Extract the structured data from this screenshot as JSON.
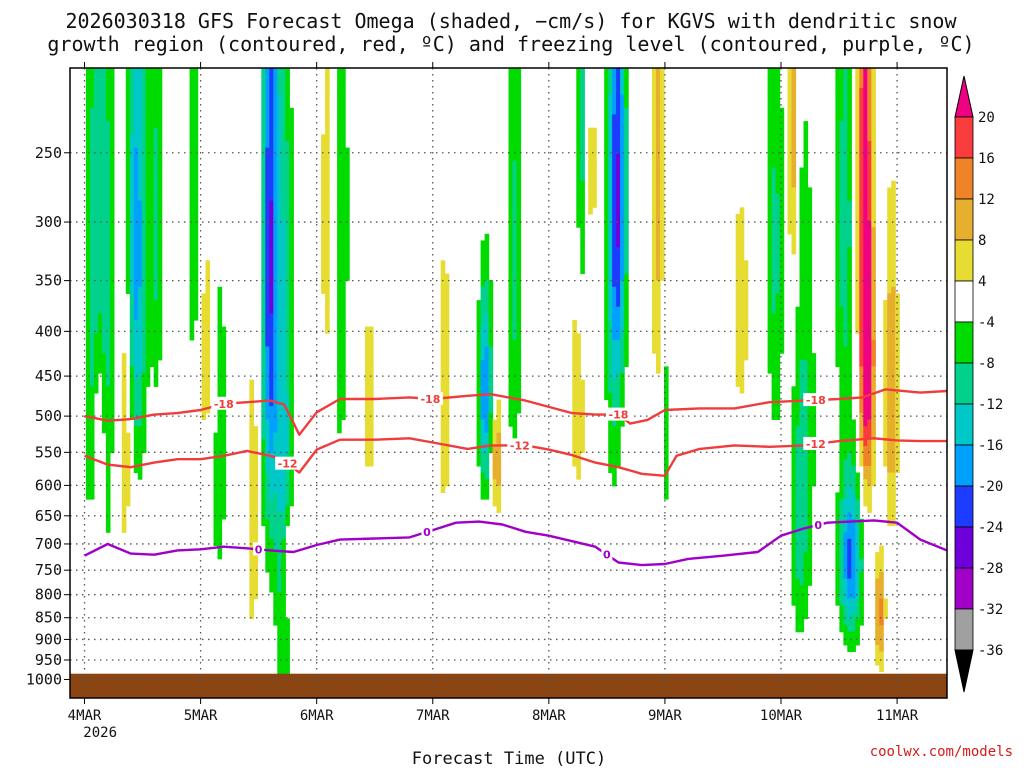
{
  "chart_data": {
    "type": "heatmap",
    "title": [
      "2026030318 GFS Forecast Omega (shaded, −cm/s) for KGVS with dendritic snow",
      "growth region (contoured, red, ºC) and freezing level (contoured, purple, ºC)"
    ],
    "xlabel": "Forecast Time (UTC)",
    "ylabel": "",
    "credit": "coolwx.com/models",
    "x_start_label": "2026",
    "xlim": [
      -0.125,
      7.43
    ],
    "ylim": [
      1050,
      200
    ],
    "x_ticks": [
      {
        "x": 0,
        "label": "4MAR"
      },
      {
        "x": 1,
        "label": "5MAR"
      },
      {
        "x": 2,
        "label": "6MAR"
      },
      {
        "x": 3,
        "label": "7MAR"
      },
      {
        "x": 4,
        "label": "8MAR"
      },
      {
        "x": 5,
        "label": "9MAR"
      },
      {
        "x": 6,
        "label": "10MAR"
      },
      {
        "x": 7,
        "label": "11MAR"
      }
    ],
    "y_ticks": [
      250,
      300,
      350,
      400,
      450,
      500,
      550,
      600,
      650,
      700,
      750,
      800,
      850,
      900,
      950,
      1000
    ],
    "colorbar": {
      "levels": [
        -36,
        -32,
        -28,
        -24,
        -20,
        -16,
        -12,
        -8,
        -4,
        4,
        8,
        12,
        16,
        20
      ],
      "label_levels": [
        "-36",
        "-32",
        "-28",
        "-24",
        "-20",
        "-16",
        "-12",
        "-8",
        "-4",
        "4",
        "8",
        "12",
        "16",
        "20"
      ],
      "colors": [
        "#000000",
        "#a0a0a0",
        "#a000c8",
        "#6e00dc",
        "#1e3cff",
        "#00a0ff",
        "#00c8c8",
        "#00d28c",
        "#00dc00",
        "#ffffff",
        "#e6dc32",
        "#e6af2d",
        "#f08228",
        "#fa3c3c",
        "#f00082"
      ]
    },
    "ground_level_hpa": 985,
    "omega_features": [
      {
        "x": 0.08,
        "p": 420,
        "hw": 0.05,
        "hp": 220,
        "v": -12
      },
      {
        "x": 0.18,
        "p": 380,
        "hw": 0.05,
        "hp": 250,
        "v": -10
      },
      {
        "x": 0.45,
        "p": 320,
        "hw": 0.06,
        "hp": 160,
        "v": -18
      },
      {
        "x": 0.62,
        "p": 300,
        "hw": 0.04,
        "hp": 120,
        "v": -9
      },
      {
        "x": 0.95,
        "p": 300,
        "hw": 0.05,
        "hp": 130,
        "v": -7
      },
      {
        "x": 1.6,
        "p": 330,
        "hw": 0.05,
        "hp": 230,
        "v": -24
      },
      {
        "x": 1.72,
        "p": 560,
        "hw": 0.05,
        "hp": 330,
        "v": -14
      },
      {
        "x": 1.15,
        "p": 520,
        "hw": 0.07,
        "hp": 230,
        "v": -6
      },
      {
        "x": 2.2,
        "p": 300,
        "hw": 0.05,
        "hp": 180,
        "v": -9
      },
      {
        "x": 3.45,
        "p": 470,
        "hw": 0.04,
        "hp": 90,
        "v": -20
      },
      {
        "x": 3.7,
        "p": 330,
        "hw": 0.05,
        "hp": 160,
        "v": -9
      },
      {
        "x": 4.3,
        "p": 260,
        "hw": 0.05,
        "hp": 100,
        "v": -14
      },
      {
        "x": 4.6,
        "p": 280,
        "hw": 0.05,
        "hp": 120,
        "v": -20
      },
      {
        "x": 4.55,
        "p": 350,
        "hw": 0.05,
        "hp": 200,
        "v": -8
      },
      {
        "x": 5.0,
        "p": 470,
        "hw": 0.03,
        "hp": 160,
        "v": -7
      },
      {
        "x": 5.95,
        "p": 320,
        "hw": 0.05,
        "hp": 150,
        "v": -9
      },
      {
        "x": 6.2,
        "p": 500,
        "hw": 0.07,
        "hp": 230,
        "v": -8
      },
      {
        "x": 6.55,
        "p": 300,
        "hw": 0.06,
        "hp": 160,
        "v": -10
      },
      {
        "x": 6.6,
        "p": 730,
        "hw": 0.07,
        "hp": 110,
        "v": -21
      },
      {
        "x": 6.15,
        "p": 700,
        "hw": 0.05,
        "hp": 140,
        "v": -6
      },
      {
        "x": 0.35,
        "p": 520,
        "hw": 0.04,
        "hp": 130,
        "v": 9
      },
      {
        "x": 0.12,
        "p": 540,
        "hw": 0.04,
        "hp": 120,
        "v": 13
      },
      {
        "x": 1.05,
        "p": 420,
        "hw": 0.05,
        "hp": 110,
        "v": 9
      },
      {
        "x": 1.45,
        "p": 650,
        "hw": 0.03,
        "hp": 180,
        "v": 8
      },
      {
        "x": 1.75,
        "p": 740,
        "hw": 0.03,
        "hp": 70,
        "v": 14
      },
      {
        "x": 2.1,
        "p": 300,
        "hw": 0.05,
        "hp": 120,
        "v": 7
      },
      {
        "x": 2.45,
        "p": 480,
        "hw": 0.04,
        "hp": 110,
        "v": 6
      },
      {
        "x": 3.1,
        "p": 470,
        "hw": 0.05,
        "hp": 160,
        "v": 6
      },
      {
        "x": 3.55,
        "p": 560,
        "hw": 0.03,
        "hp": 60,
        "v": 12
      },
      {
        "x": 4.25,
        "p": 450,
        "hw": 0.05,
        "hp": 120,
        "v": 8
      },
      {
        "x": 4.35,
        "p": 260,
        "hw": 0.04,
        "hp": 70,
        "v": 12
      },
      {
        "x": 4.95,
        "p": 280,
        "hw": 0.05,
        "hp": 140,
        "v": 10
      },
      {
        "x": 5.65,
        "p": 380,
        "hw": 0.05,
        "hp": 90,
        "v": 7
      },
      {
        "x": 6.1,
        "p": 230,
        "hw": 0.03,
        "hp": 90,
        "v": 12
      },
      {
        "x": 6.72,
        "p": 260,
        "hw": 0.04,
        "hp": 190,
        "v": 21
      },
      {
        "x": 6.75,
        "p": 440,
        "hw": 0.04,
        "hp": 110,
        "v": 18
      },
      {
        "x": 6.95,
        "p": 470,
        "hw": 0.04,
        "hp": 140,
        "v": 12
      },
      {
        "x": 6.85,
        "p": 840,
        "hw": 0.03,
        "hp": 90,
        "v": 14
      }
    ],
    "series": [
      {
        "name": "-18",
        "color": "#f03c3c",
        "x": [
          0.0,
          0.2,
          0.4,
          0.6,
          0.8,
          1.0,
          1.2,
          1.4,
          1.6,
          1.72,
          1.85,
          2.0,
          2.2,
          2.5,
          2.8,
          3.0,
          3.3,
          3.5,
          3.8,
          4.0,
          4.2,
          4.4,
          4.6,
          4.7,
          4.85,
          5.0,
          5.3,
          5.6,
          5.9,
          6.2,
          6.5,
          6.7,
          6.9,
          7.2,
          7.43
        ],
        "p": [
          500,
          506,
          504,
          498,
          496,
          492,
          484,
          482,
          480,
          485,
          525,
          495,
          478,
          478,
          476,
          478,
          474,
          472,
          480,
          488,
          496,
          498,
          498,
          510,
          505,
          492,
          490,
          490,
          482,
          480,
          478,
          476,
          466,
          470,
          468
        ],
        "labels": [
          {
            "x": 1.2,
            "text": "-18"
          },
          {
            "x": 2.98,
            "text": "-18"
          },
          {
            "x": 4.6,
            "text": "-18"
          },
          {
            "x": 6.3,
            "text": "-18"
          }
        ]
      },
      {
        "name": "-12",
        "color": "#f03c3c",
        "x": [
          0.0,
          0.2,
          0.4,
          0.6,
          0.8,
          1.0,
          1.2,
          1.4,
          1.6,
          1.7,
          1.85,
          2.0,
          2.2,
          2.5,
          2.8,
          3.0,
          3.3,
          3.5,
          3.8,
          4.0,
          4.2,
          4.4,
          4.6,
          4.8,
          5.0,
          5.1,
          5.3,
          5.6,
          5.9,
          6.2,
          6.5,
          6.8,
          7.0,
          7.2,
          7.43
        ],
        "p": [
          555,
          568,
          572,
          565,
          560,
          560,
          555,
          548,
          555,
          560,
          580,
          546,
          532,
          532,
          530,
          536,
          545,
          540,
          540,
          546,
          554,
          565,
          572,
          582,
          585,
          555,
          545,
          540,
          542,
          540,
          534,
          530,
          533,
          534,
          534
        ],
        "labels": [
          {
            "x": 1.75,
            "text": "-12"
          },
          {
            "x": 3.75,
            "text": "-12"
          },
          {
            "x": 6.3,
            "text": "-12"
          }
        ]
      },
      {
        "name": "0",
        "color": "#a000c8",
        "x": [
          0.0,
          0.2,
          0.4,
          0.6,
          0.8,
          1.0,
          1.2,
          1.4,
          1.6,
          1.8,
          2.0,
          2.2,
          2.5,
          2.8,
          3.0,
          3.2,
          3.4,
          3.6,
          3.8,
          4.0,
          4.2,
          4.4,
          4.6,
          4.8,
          5.0,
          5.2,
          5.5,
          5.8,
          6.0,
          6.2,
          6.4,
          6.6,
          6.8,
          7.0,
          7.2,
          7.43
        ],
        "p": [
          722,
          700,
          718,
          720,
          712,
          710,
          705,
          708,
          712,
          715,
          702,
          692,
          690,
          688,
          675,
          662,
          660,
          665,
          678,
          685,
          695,
          705,
          735,
          740,
          738,
          728,
          722,
          715,
          685,
          672,
          662,
          660,
          658,
          662,
          692,
          712
        ],
        "labels": [
          {
            "x": 1.5,
            "text": "0"
          },
          {
            "x": 2.95,
            "text": "0"
          },
          {
            "x": 4.5,
            "text": "0"
          },
          {
            "x": 6.32,
            "text": "0"
          }
        ]
      }
    ]
  }
}
